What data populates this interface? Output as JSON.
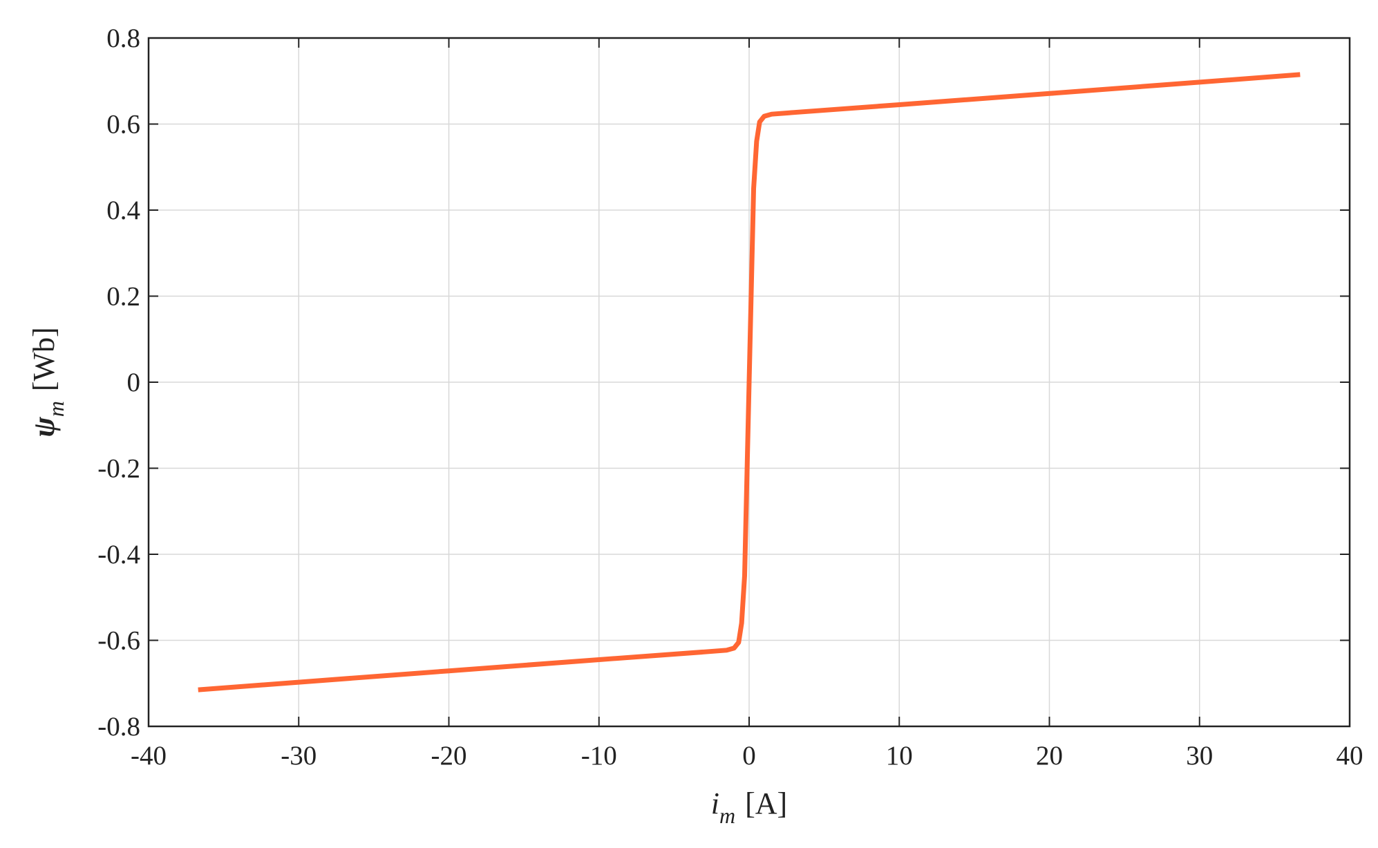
{
  "chart_data": {
    "type": "line",
    "x_label": {
      "symbol": "i",
      "subscript": "m",
      "unit": "[A]"
    },
    "y_label": {
      "symbol": "ψ",
      "subscript": "m",
      "unit": "[Wb]"
    },
    "xlim": [
      -40,
      40
    ],
    "ylim": [
      -0.8,
      0.8
    ],
    "xticks": [
      -40,
      -30,
      -20,
      -10,
      0,
      10,
      20,
      30,
      40
    ],
    "yticks": [
      -0.8,
      -0.6,
      -0.4,
      -0.2,
      0,
      0.2,
      0.4,
      0.6,
      0.8
    ],
    "grid": true,
    "series": [
      {
        "color": "#ff6633",
        "x": [
          -36.7,
          -20,
          -10,
          -3,
          -1.5,
          -1,
          -0.7,
          -0.5,
          -0.3,
          0,
          0.3,
          0.5,
          0.7,
          1,
          1.5,
          3,
          10,
          20,
          36.7
        ],
        "values": [
          -0.715,
          -0.671,
          -0.645,
          -0.627,
          -0.623,
          -0.618,
          -0.605,
          -0.56,
          -0.45,
          0,
          0.45,
          0.56,
          0.605,
          0.618,
          0.623,
          0.627,
          0.645,
          0.671,
          0.715
        ]
      }
    ]
  }
}
